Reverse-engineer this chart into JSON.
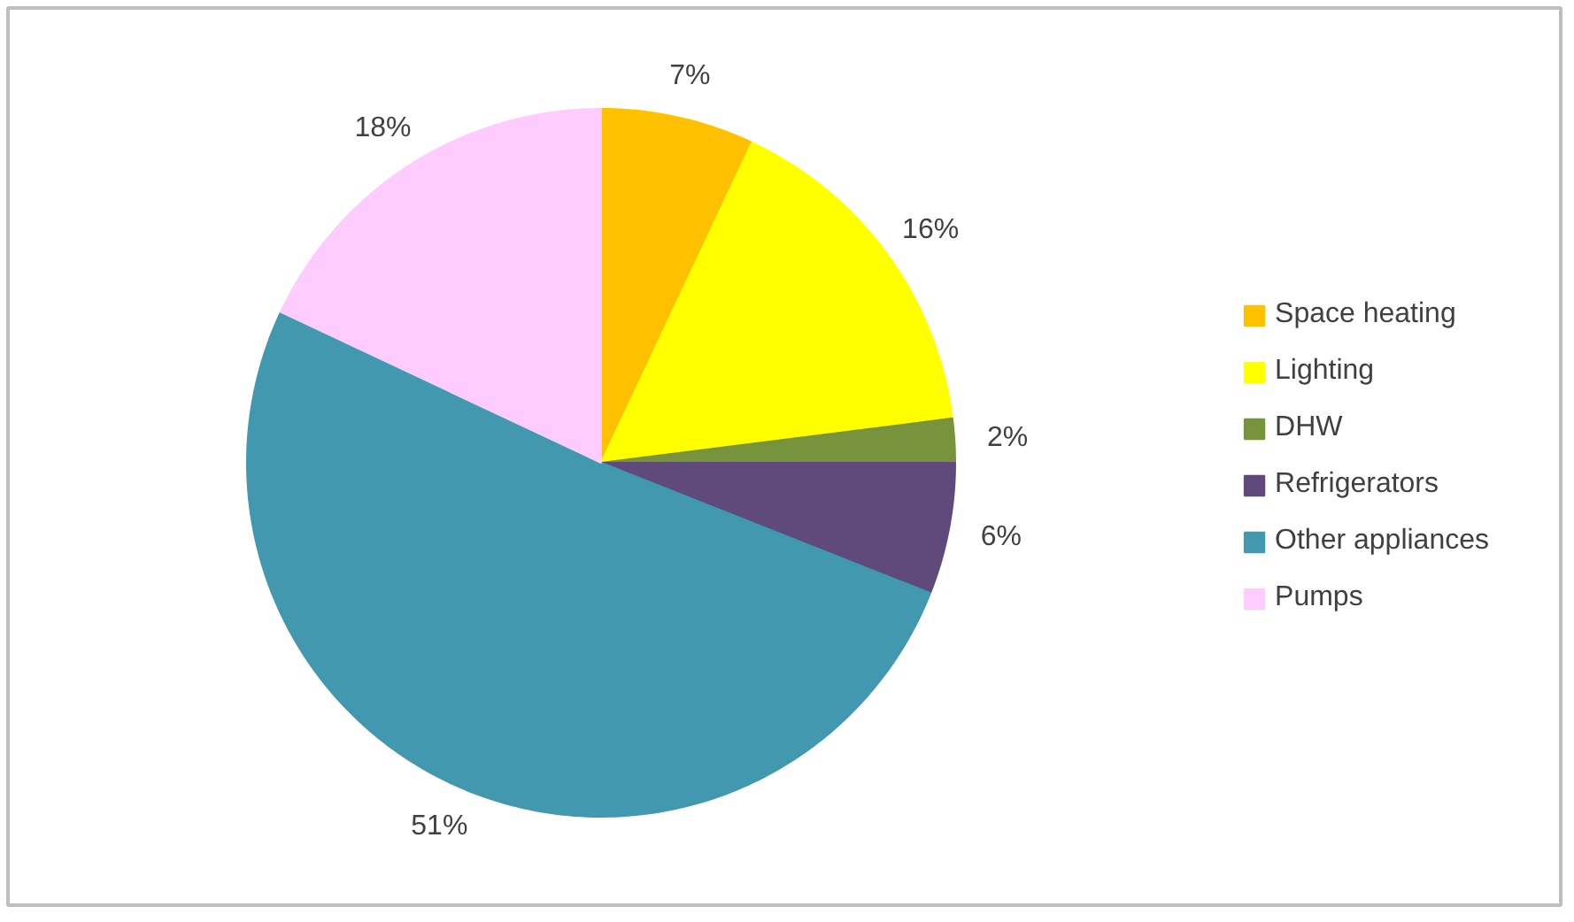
{
  "chart_data": {
    "type": "pie",
    "categories": [
      "Space heating",
      "Lighting",
      "DHW",
      "Refrigerators",
      "Other appliances",
      "Pumps"
    ],
    "values": [
      7,
      16,
      2,
      6,
      51,
      18
    ],
    "value_labels": [
      "7%",
      "16%",
      "2%",
      "6%",
      "51%",
      "18%"
    ],
    "colors": [
      "#ffc000",
      "#ffff00",
      "#77933c",
      "#604a7b",
      "#4198af",
      "#ffccff"
    ],
    "legend": "right"
  }
}
